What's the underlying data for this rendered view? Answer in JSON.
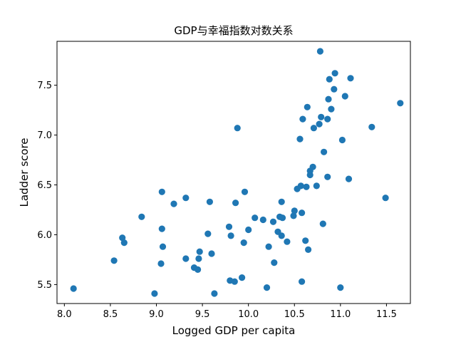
{
  "chart_data": {
    "type": "scatter",
    "title": "GDP与幸福指数对数关系",
    "xlabel": "Logged GDP per capita",
    "ylabel": "Ladder score",
    "xlim": [
      7.92,
      11.76
    ],
    "ylim": [
      5.31,
      7.94
    ],
    "xticks": [
      "8.0",
      "8.5",
      "9.0",
      "9.5",
      "10.0",
      "10.5",
      "11.0",
      "11.5"
    ],
    "yticks": [
      "5.5",
      "6.0",
      "6.5",
      "7.0",
      "7.5"
    ],
    "grid": false,
    "marker_color": "#1f77b4",
    "points": [
      {
        "x": 8.1,
        "y": 5.46
      },
      {
        "x": 8.54,
        "y": 5.74
      },
      {
        "x": 8.63,
        "y": 5.97
      },
      {
        "x": 8.65,
        "y": 5.92
      },
      {
        "x": 8.84,
        "y": 6.18
      },
      {
        "x": 8.98,
        "y": 5.41
      },
      {
        "x": 9.06,
        "y": 6.43
      },
      {
        "x": 9.06,
        "y": 6.06
      },
      {
        "x": 9.07,
        "y": 5.88
      },
      {
        "x": 9.05,
        "y": 5.71
      },
      {
        "x": 9.19,
        "y": 6.31
      },
      {
        "x": 9.32,
        "y": 6.37
      },
      {
        "x": 9.32,
        "y": 5.76
      },
      {
        "x": 9.41,
        "y": 5.67
      },
      {
        "x": 9.45,
        "y": 5.65
      },
      {
        "x": 9.47,
        "y": 5.83
      },
      {
        "x": 9.46,
        "y": 5.76
      },
      {
        "x": 9.56,
        "y": 6.01
      },
      {
        "x": 9.58,
        "y": 6.33
      },
      {
        "x": 9.6,
        "y": 5.81
      },
      {
        "x": 9.63,
        "y": 5.41
      },
      {
        "x": 9.79,
        "y": 6.08
      },
      {
        "x": 9.81,
        "y": 5.99
      },
      {
        "x": 9.8,
        "y": 5.54
      },
      {
        "x": 9.85,
        "y": 5.53
      },
      {
        "x": 9.86,
        "y": 6.32
      },
      {
        "x": 9.88,
        "y": 7.07
      },
      {
        "x": 9.93,
        "y": 5.57
      },
      {
        "x": 9.95,
        "y": 5.92
      },
      {
        "x": 9.96,
        "y": 6.43
      },
      {
        "x": 10.0,
        "y": 6.05
      },
      {
        "x": 10.07,
        "y": 6.17
      },
      {
        "x": 10.16,
        "y": 6.15
      },
      {
        "x": 10.2,
        "y": 5.47
      },
      {
        "x": 10.22,
        "y": 5.88
      },
      {
        "x": 10.27,
        "y": 6.13
      },
      {
        "x": 10.28,
        "y": 5.72
      },
      {
        "x": 10.32,
        "y": 6.03
      },
      {
        "x": 10.34,
        "y": 6.18
      },
      {
        "x": 10.37,
        "y": 6.17
      },
      {
        "x": 10.36,
        "y": 6.33
      },
      {
        "x": 10.36,
        "y": 5.99
      },
      {
        "x": 10.42,
        "y": 5.93
      },
      {
        "x": 10.49,
        "y": 6.19
      },
      {
        "x": 10.5,
        "y": 6.24
      },
      {
        "x": 10.53,
        "y": 6.46
      },
      {
        "x": 10.56,
        "y": 6.96
      },
      {
        "x": 10.57,
        "y": 6.49
      },
      {
        "x": 10.58,
        "y": 6.22
      },
      {
        "x": 10.58,
        "y": 5.53
      },
      {
        "x": 10.59,
        "y": 7.16
      },
      {
        "x": 10.62,
        "y": 5.94
      },
      {
        "x": 10.63,
        "y": 6.48
      },
      {
        "x": 10.64,
        "y": 7.28
      },
      {
        "x": 10.65,
        "y": 5.85
      },
      {
        "x": 10.67,
        "y": 6.64
      },
      {
        "x": 10.67,
        "y": 6.6
      },
      {
        "x": 10.7,
        "y": 6.68
      },
      {
        "x": 10.71,
        "y": 7.07
      },
      {
        "x": 10.74,
        "y": 6.49
      },
      {
        "x": 10.77,
        "y": 7.11
      },
      {
        "x": 10.78,
        "y": 7.84
      },
      {
        "x": 10.79,
        "y": 7.18
      },
      {
        "x": 10.81,
        "y": 6.11
      },
      {
        "x": 10.82,
        "y": 6.83
      },
      {
        "x": 10.86,
        "y": 6.58
      },
      {
        "x": 10.86,
        "y": 7.16
      },
      {
        "x": 10.87,
        "y": 7.36
      },
      {
        "x": 10.88,
        "y": 7.56
      },
      {
        "x": 10.9,
        "y": 7.26
      },
      {
        "x": 10.93,
        "y": 7.46
      },
      {
        "x": 10.94,
        "y": 7.62
      },
      {
        "x": 11.0,
        "y": 5.47
      },
      {
        "x": 11.02,
        "y": 6.95
      },
      {
        "x": 11.05,
        "y": 7.39
      },
      {
        "x": 11.09,
        "y": 6.56
      },
      {
        "x": 11.11,
        "y": 7.57
      },
      {
        "x": 11.34,
        "y": 7.08
      },
      {
        "x": 11.49,
        "y": 6.37
      },
      {
        "x": 11.65,
        "y": 7.32
      }
    ]
  }
}
